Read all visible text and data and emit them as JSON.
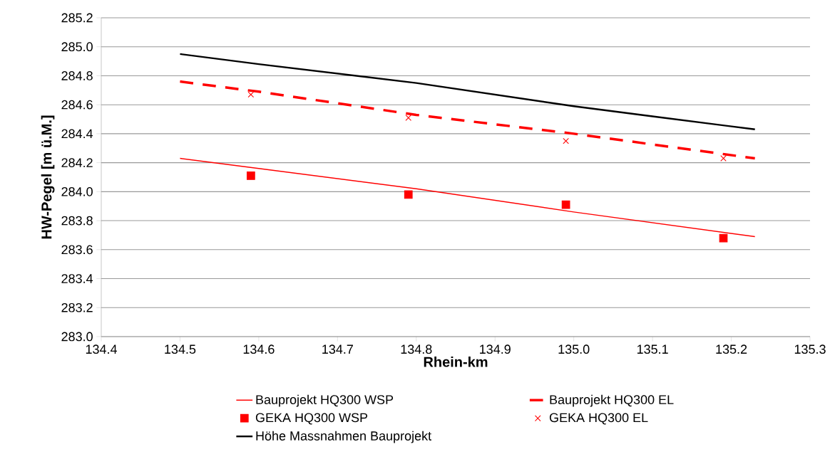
{
  "chart_data": {
    "type": "line",
    "xlabel": "Rhein-km",
    "ylabel": "HW-Pegel [m ü.M.]",
    "xlim": [
      134.4,
      135.3
    ],
    "ylim": [
      283.0,
      285.2
    ],
    "xticks": [
      134.4,
      134.5,
      134.6,
      134.7,
      134.8,
      134.9,
      {
        "value": 135.0,
        "label": "135.0"
      },
      135.1,
      135.2,
      135.3
    ],
    "yticks": [
      {
        "value": 283.0,
        "label": "283.0"
      },
      283.2,
      283.4,
      283.6,
      283.8,
      {
        "value": 284.0,
        "label": "284.0"
      },
      284.2,
      284.4,
      284.6,
      284.8,
      {
        "value": 285.0,
        "label": "285.0"
      },
      285.2
    ],
    "grid": "y",
    "legend": "bottom",
    "series": [
      {
        "name": "Bauprojekt HQ300 WSP",
        "color": "#ff0000",
        "line_style": "solid",
        "marker": "none",
        "x": [
          134.5,
          134.6,
          134.8,
          135.0,
          135.23
        ],
        "values": [
          284.23,
          284.16,
          284.02,
          283.86,
          283.69
        ]
      },
      {
        "name": "Bauprojekt HQ300 EL",
        "color": "#ff0000",
        "line_style": "dashed",
        "marker": "none",
        "x": [
          134.5,
          134.6,
          134.8,
          135.0,
          135.23
        ],
        "values": [
          284.76,
          284.69,
          284.53,
          284.4,
          284.23
        ]
      },
      {
        "name": "GEKA HQ300 WSP",
        "type": "scatter",
        "color": "#ff0000",
        "marker": "square",
        "x": [
          134.59,
          134.79,
          134.99,
          135.19
        ],
        "values": [
          284.11,
          283.98,
          283.91,
          283.68
        ]
      },
      {
        "name": "GEKA HQ300 EL",
        "type": "scatter",
        "color": "#ff0000",
        "marker": "cross",
        "x": [
          134.59,
          134.79,
          134.99,
          135.19
        ],
        "values": [
          284.67,
          284.51,
          284.35,
          284.23
        ]
      },
      {
        "name": "Höhe Massnahmen Bauprojekt",
        "color": "#000000",
        "line_style": "solid",
        "marker": "none",
        "x": [
          134.5,
          134.6,
          134.8,
          135.0,
          135.1,
          135.23
        ],
        "values": [
          284.95,
          284.88,
          284.75,
          284.59,
          284.52,
          284.43
        ]
      }
    ]
  }
}
